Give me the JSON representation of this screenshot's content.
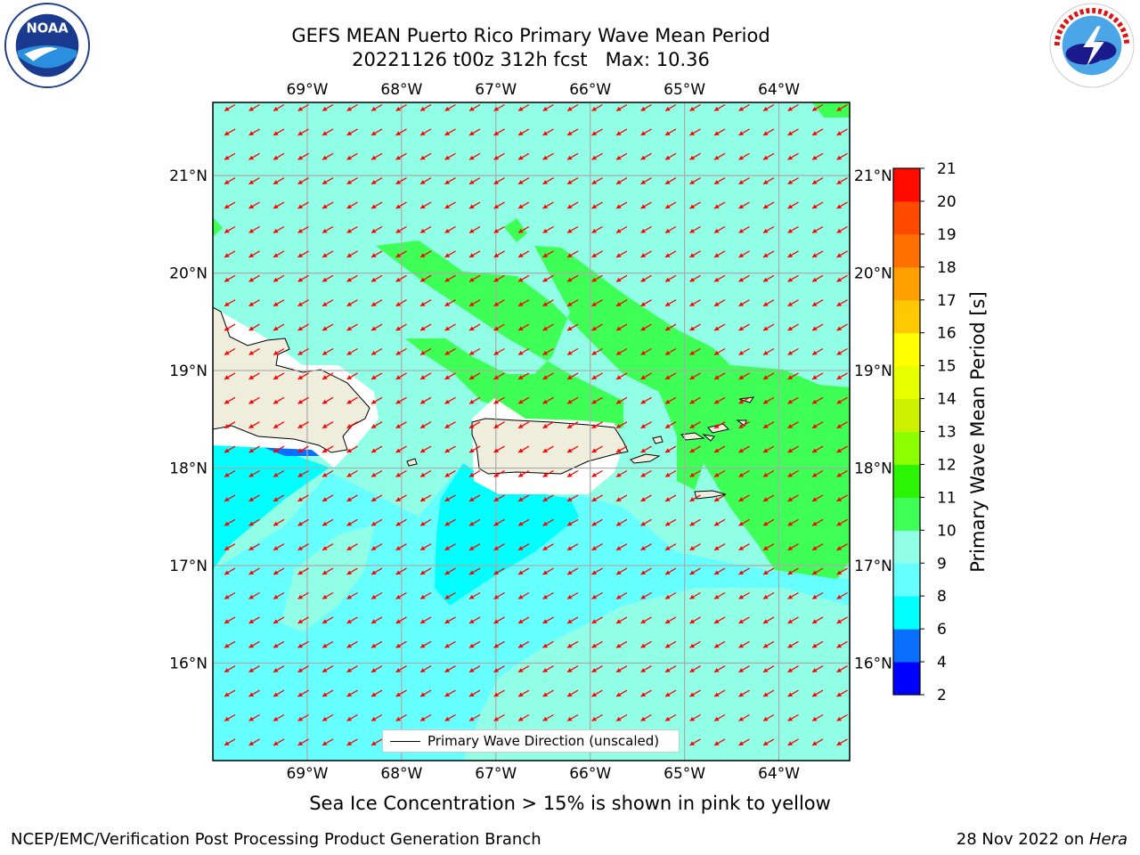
{
  "header": {
    "title_line1": "GEFS MEAN Puerto Rico Primary Wave Mean Period",
    "title_line2": "20221126 t00z 312h fcst   Max: 10.36"
  },
  "logos": {
    "left": {
      "icon": "noaa-logo",
      "text": "NOAA",
      "ring_text": "NATIONAL OCEANIC AND ATMOSPHERIC ADMINISTRATION · U.S. DEPARTMENT OF COMMERCE"
    },
    "right": {
      "icon": "nws-logo",
      "ring_text": "NATIONAL WEATHER SERVICE"
    }
  },
  "map": {
    "lon_labels": [
      "69°W",
      "68°W",
      "67°W",
      "66°W",
      "65°W",
      "64°W"
    ],
    "lat_labels": [
      "21°N",
      "20°N",
      "19°N",
      "18°N",
      "17°N",
      "16°N"
    ],
    "extent": {
      "lon": [
        -70.0,
        -63.25
      ],
      "lat": [
        15.0,
        21.75
      ]
    },
    "gridlines": true,
    "vector_color": "#ff0000",
    "vector_direction": "toward south-west"
  },
  "legend": {
    "label": "Primary Wave Direction (unscaled)",
    "position": "lower-center"
  },
  "colorbar": {
    "title": "Primary Wave Mean Period [s]",
    "tick_labels": [
      "2",
      "4",
      "6",
      "8",
      "9",
      "10",
      "11",
      "12",
      "13",
      "14",
      "15",
      "16",
      "17",
      "18",
      "19",
      "20",
      "21"
    ],
    "colors": [
      "#0000ff",
      "#0a6fff",
      "#00ffff",
      "#66ffff",
      "#90ffe6",
      "#3dff55",
      "#2df402",
      "#8cff00",
      "#ccf200",
      "#e8ff00",
      "#ffff00",
      "#ffc800",
      "#ffa000",
      "#ff7000",
      "#ff4a00",
      "#ff0a00"
    ]
  },
  "fill_colors": {
    "period_6": "#0a6fff",
    "period_8": "#00ffff",
    "period_9": "#66ffff",
    "period_10": "#90ffe6",
    "period_11": "#3dff55",
    "land": "#efeddc"
  },
  "notes": {
    "sea_ice": "Sea Ice Concentration > 15% is shown in pink to yellow"
  },
  "footer": {
    "left": "NCEP/EMC/Verification Post Processing Product Generation Branch",
    "date": "28 Nov 2022 on ",
    "machine": "Hera"
  }
}
